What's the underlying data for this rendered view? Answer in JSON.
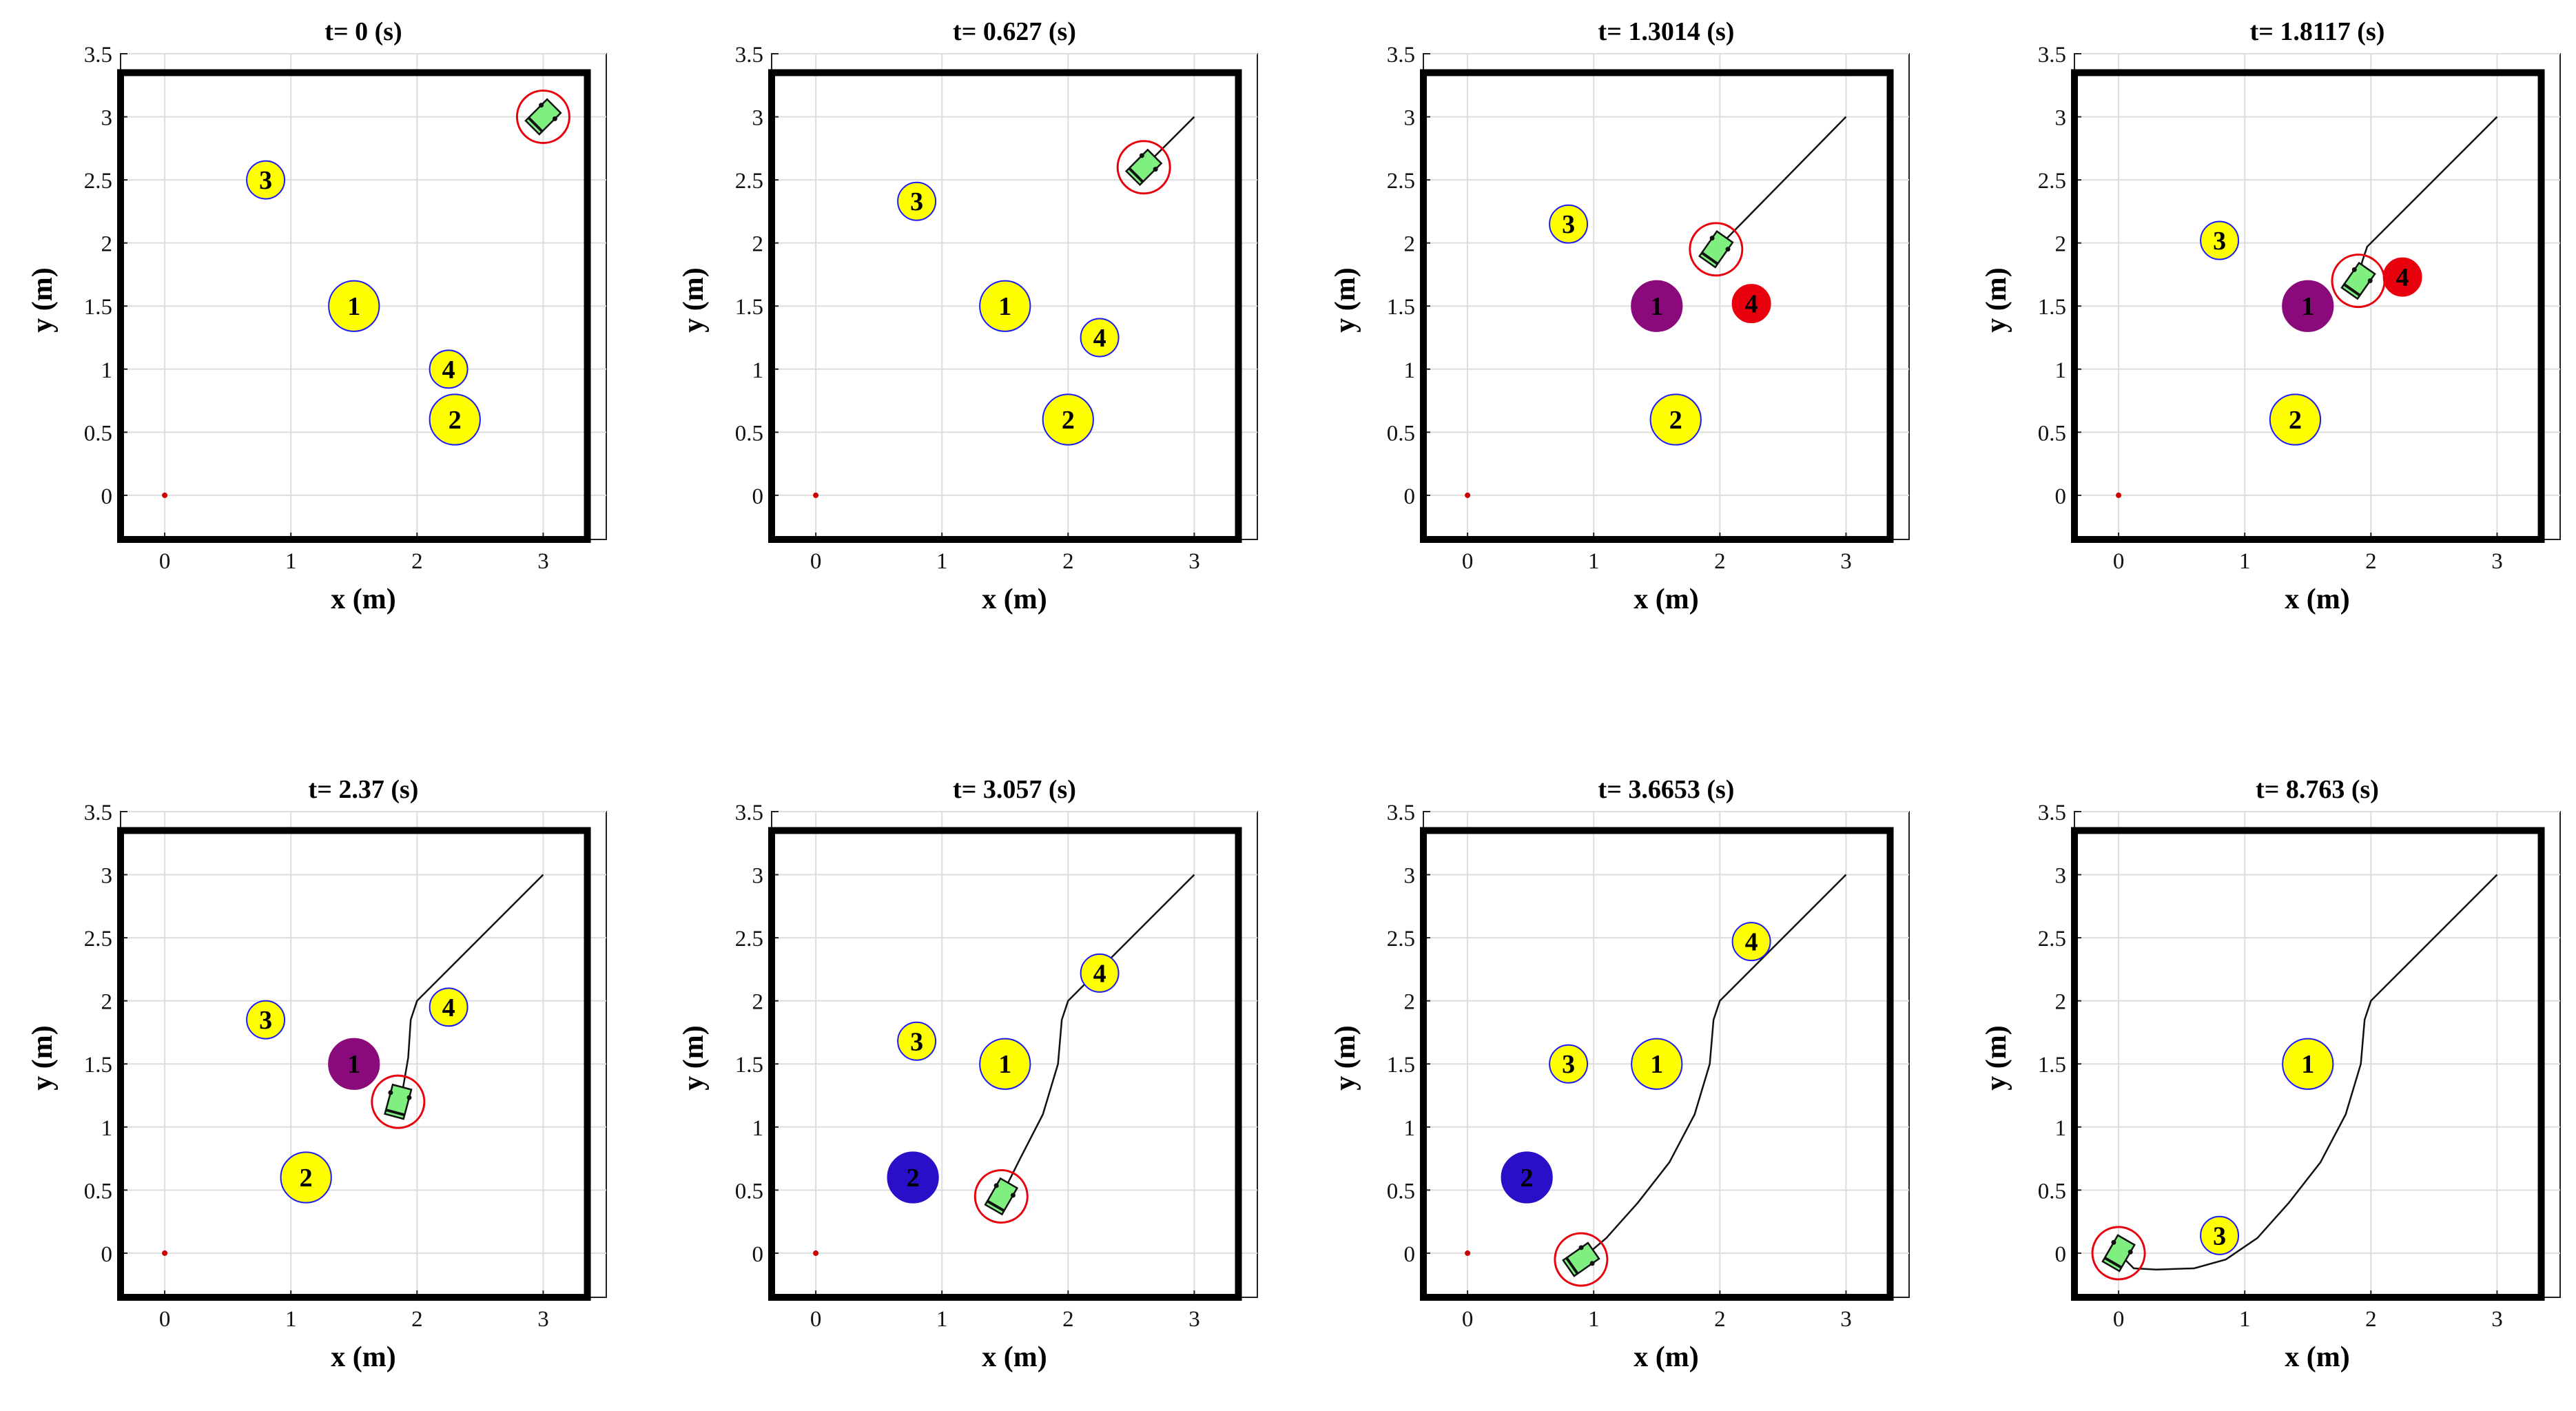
{
  "colors": {
    "obstacle_idle": "#ffff00",
    "obstacle_outline": "#1a1aff",
    "obstacle_active_1": "#8b0a7b",
    "obstacle_active_2": "#2a0fc8",
    "obstacle_alert": "#e8000d",
    "robot_body": "#7ff07f",
    "safety_ring": "#e8000d",
    "trajectory": "#111111",
    "goal_marker": "#cc0000",
    "grid": "#dddddd"
  },
  "chart_data": [
    {
      "type": "scatter",
      "title": "t= 0 (s)",
      "xlabel": "x (m)",
      "ylabel": "y (m)",
      "xlim": [
        -0.35,
        3.5
      ],
      "ylim": [
        -0.35,
        3.5
      ],
      "xticks": [
        "0",
        "1",
        "2",
        "3"
      ],
      "yticks": [
        "0",
        "0.5",
        "1",
        "1.5",
        "2",
        "2.5",
        "3",
        "3.5"
      ],
      "grid": true,
      "workspace": [
        -0.35,
        3.35,
        -0.35,
        3.35
      ],
      "goal": [
        0,
        0
      ],
      "robot": {
        "x": 3.0,
        "y": 3.0,
        "heading_deg": -135
      },
      "trajectory": [
        [
          3.0,
          3.0
        ]
      ],
      "obstacles": [
        {
          "id": "1",
          "x": 1.5,
          "y": 1.5,
          "r": 0.2,
          "state": "idle"
        },
        {
          "id": "2",
          "x": 2.3,
          "y": 0.6,
          "r": 0.2,
          "state": "idle"
        },
        {
          "id": "3",
          "x": 0.8,
          "y": 2.5,
          "r": 0.15,
          "state": "idle"
        },
        {
          "id": "4",
          "x": 2.25,
          "y": 1.0,
          "r": 0.15,
          "state": "idle"
        }
      ]
    },
    {
      "type": "scatter",
      "title": "t= 0.627 (s)",
      "xlabel": "x (m)",
      "ylabel": "y (m)",
      "xlim": [
        -0.35,
        3.5
      ],
      "ylim": [
        -0.35,
        3.5
      ],
      "xticks": [
        "0",
        "1",
        "2",
        "3"
      ],
      "yticks": [
        "0",
        "0.5",
        "1",
        "1.5",
        "2",
        "2.5",
        "3",
        "3.5"
      ],
      "grid": true,
      "workspace": [
        -0.35,
        3.35,
        -0.35,
        3.35
      ],
      "goal": [
        0,
        0
      ],
      "robot": {
        "x": 2.6,
        "y": 2.6,
        "heading_deg": -135
      },
      "trajectory": [
        [
          3.0,
          3.0
        ],
        [
          2.6,
          2.6
        ]
      ],
      "obstacles": [
        {
          "id": "1",
          "x": 1.5,
          "y": 1.5,
          "r": 0.2,
          "state": "idle"
        },
        {
          "id": "2",
          "x": 2.0,
          "y": 0.6,
          "r": 0.2,
          "state": "idle"
        },
        {
          "id": "3",
          "x": 0.8,
          "y": 2.33,
          "r": 0.15,
          "state": "idle"
        },
        {
          "id": "4",
          "x": 2.25,
          "y": 1.25,
          "r": 0.15,
          "state": "idle"
        }
      ]
    },
    {
      "type": "scatter",
      "title": "t= 1.3014 (s)",
      "xlabel": "x (m)",
      "ylabel": "y (m)",
      "xlim": [
        -0.35,
        3.5
      ],
      "ylim": [
        -0.35,
        3.5
      ],
      "xticks": [
        "0",
        "1",
        "2",
        "3"
      ],
      "yticks": [
        "0",
        "0.5",
        "1",
        "1.5",
        "2",
        "2.5",
        "3",
        "3.5"
      ],
      "grid": true,
      "workspace": [
        -0.35,
        3.35,
        -0.35,
        3.35
      ],
      "goal": [
        0,
        0
      ],
      "robot": {
        "x": 1.97,
        "y": 1.95,
        "heading_deg": -125
      },
      "trajectory": [
        [
          3.0,
          3.0
        ],
        [
          1.97,
          1.95
        ]
      ],
      "obstacles": [
        {
          "id": "1",
          "x": 1.5,
          "y": 1.5,
          "r": 0.2,
          "state": "active"
        },
        {
          "id": "2",
          "x": 1.65,
          "y": 0.6,
          "r": 0.2,
          "state": "idle"
        },
        {
          "id": "3",
          "x": 0.8,
          "y": 2.15,
          "r": 0.15,
          "state": "idle"
        },
        {
          "id": "4",
          "x": 2.25,
          "y": 1.52,
          "r": 0.15,
          "state": "alert"
        }
      ]
    },
    {
      "type": "scatter",
      "title": "t= 1.8117 (s)",
      "xlabel": "x (m)",
      "ylabel": "y (m)",
      "xlim": [
        -0.35,
        3.5
      ],
      "ylim": [
        -0.35,
        3.5
      ],
      "xticks": [
        "0",
        "1",
        "2",
        "3"
      ],
      "yticks": [
        "0",
        "0.5",
        "1",
        "1.5",
        "2",
        "2.5",
        "3",
        "3.5"
      ],
      "grid": true,
      "workspace": [
        -0.35,
        3.35,
        -0.35,
        3.35
      ],
      "goal": [
        0,
        0
      ],
      "robot": {
        "x": 1.9,
        "y": 1.7,
        "heading_deg": -125
      },
      "trajectory": [
        [
          3.0,
          3.0
        ],
        [
          1.97,
          1.97
        ],
        [
          1.93,
          1.85
        ],
        [
          1.9,
          1.7
        ]
      ],
      "obstacles": [
        {
          "id": "1",
          "x": 1.5,
          "y": 1.5,
          "r": 0.2,
          "state": "active"
        },
        {
          "id": "2",
          "x": 1.4,
          "y": 0.6,
          "r": 0.2,
          "state": "idle"
        },
        {
          "id": "3",
          "x": 0.8,
          "y": 2.02,
          "r": 0.15,
          "state": "idle"
        },
        {
          "id": "4",
          "x": 2.25,
          "y": 1.73,
          "r": 0.15,
          "state": "alert"
        }
      ]
    },
    {
      "type": "scatter",
      "title": "t= 2.37 (s)",
      "xlabel": "x (m)",
      "ylabel": "y (m)",
      "xlim": [
        -0.35,
        3.5
      ],
      "ylim": [
        -0.35,
        3.5
      ],
      "xticks": [
        "0",
        "1",
        "2",
        "3"
      ],
      "yticks": [
        "0",
        "0.5",
        "1",
        "1.5",
        "2",
        "2.5",
        "3",
        "3.5"
      ],
      "grid": true,
      "workspace": [
        -0.35,
        3.35,
        -0.35,
        3.35
      ],
      "goal": [
        0,
        0
      ],
      "robot": {
        "x": 1.85,
        "y": 1.2,
        "heading_deg": -105
      },
      "trajectory": [
        [
          3.0,
          3.0
        ],
        [
          2.0,
          2.0
        ],
        [
          1.95,
          1.85
        ],
        [
          1.93,
          1.55
        ],
        [
          1.87,
          1.2
        ]
      ],
      "obstacles": [
        {
          "id": "1",
          "x": 1.5,
          "y": 1.5,
          "r": 0.2,
          "state": "active"
        },
        {
          "id": "2",
          "x": 1.12,
          "y": 0.6,
          "r": 0.2,
          "state": "idle"
        },
        {
          "id": "3",
          "x": 0.8,
          "y": 1.85,
          "r": 0.15,
          "state": "idle"
        },
        {
          "id": "4",
          "x": 2.25,
          "y": 1.95,
          "r": 0.15,
          "state": "idle"
        }
      ]
    },
    {
      "type": "scatter",
      "title": "t= 3.057 (s)",
      "xlabel": "x (m)",
      "ylabel": "y (m)",
      "xlim": [
        -0.35,
        3.5
      ],
      "ylim": [
        -0.35,
        3.5
      ],
      "xticks": [
        "0",
        "1",
        "2",
        "3"
      ],
      "yticks": [
        "0",
        "0.5",
        "1",
        "1.5",
        "2",
        "2.5",
        "3",
        "3.5"
      ],
      "grid": true,
      "workspace": [
        -0.35,
        3.35,
        -0.35,
        3.35
      ],
      "goal": [
        0,
        0
      ],
      "robot": {
        "x": 1.47,
        "y": 0.45,
        "heading_deg": -120
      },
      "trajectory": [
        [
          3.0,
          3.0
        ],
        [
          2.0,
          2.0
        ],
        [
          1.95,
          1.85
        ],
        [
          1.92,
          1.5
        ],
        [
          1.8,
          1.1
        ],
        [
          1.62,
          0.75
        ],
        [
          1.47,
          0.45
        ]
      ],
      "obstacles": [
        {
          "id": "1",
          "x": 1.5,
          "y": 1.5,
          "r": 0.2,
          "state": "idle"
        },
        {
          "id": "2",
          "x": 0.77,
          "y": 0.6,
          "r": 0.2,
          "state": "active2"
        },
        {
          "id": "3",
          "x": 0.8,
          "y": 1.68,
          "r": 0.15,
          "state": "idle"
        },
        {
          "id": "4",
          "x": 2.25,
          "y": 2.22,
          "r": 0.15,
          "state": "idle"
        }
      ]
    },
    {
      "type": "scatter",
      "title": "t= 3.6653 (s)",
      "xlabel": "x (m)",
      "ylabel": "y (m)",
      "xlim": [
        -0.35,
        3.5
      ],
      "ylim": [
        -0.35,
        3.5
      ],
      "xticks": [
        "0",
        "1",
        "2",
        "3"
      ],
      "yticks": [
        "0",
        "0.5",
        "1",
        "1.5",
        "2",
        "2.5",
        "3",
        "3.5"
      ],
      "grid": true,
      "workspace": [
        -0.35,
        3.35,
        -0.35,
        3.35
      ],
      "goal": [
        0,
        0
      ],
      "robot": {
        "x": 0.9,
        "y": -0.05,
        "heading_deg": -145
      },
      "trajectory": [
        [
          3.0,
          3.0
        ],
        [
          2.0,
          2.0
        ],
        [
          1.95,
          1.85
        ],
        [
          1.92,
          1.5
        ],
        [
          1.8,
          1.1
        ],
        [
          1.6,
          0.72
        ],
        [
          1.35,
          0.4
        ],
        [
          1.1,
          0.12
        ],
        [
          0.9,
          -0.05
        ]
      ],
      "obstacles": [
        {
          "id": "1",
          "x": 1.5,
          "y": 1.5,
          "r": 0.2,
          "state": "idle"
        },
        {
          "id": "2",
          "x": 0.47,
          "y": 0.6,
          "r": 0.2,
          "state": "active2"
        },
        {
          "id": "3",
          "x": 0.8,
          "y": 1.5,
          "r": 0.15,
          "state": "idle"
        },
        {
          "id": "4",
          "x": 2.25,
          "y": 2.47,
          "r": 0.15,
          "state": "idle"
        }
      ]
    },
    {
      "type": "scatter",
      "title": "t= 8.763 (s)",
      "xlabel": "x (m)",
      "ylabel": "y (m)",
      "xlim": [
        -0.35,
        3.5
      ],
      "ylim": [
        -0.35,
        3.5
      ],
      "xticks": [
        "0",
        "1",
        "2",
        "3"
      ],
      "yticks": [
        "0",
        "0.5",
        "1",
        "1.5",
        "2",
        "2.5",
        "3",
        "3.5"
      ],
      "grid": true,
      "workspace": [
        -0.35,
        3.35,
        -0.35,
        3.35
      ],
      "goal": [
        0,
        0
      ],
      "robot": {
        "x": 0.0,
        "y": 0.0,
        "heading_deg": -120
      },
      "trajectory": [
        [
          3.0,
          3.0
        ],
        [
          2.0,
          2.0
        ],
        [
          1.95,
          1.85
        ],
        [
          1.92,
          1.5
        ],
        [
          1.8,
          1.1
        ],
        [
          1.6,
          0.72
        ],
        [
          1.35,
          0.4
        ],
        [
          1.1,
          0.12
        ],
        [
          0.85,
          -0.05
        ],
        [
          0.6,
          -0.12
        ],
        [
          0.3,
          -0.13
        ],
        [
          0.12,
          -0.12
        ],
        [
          0.0,
          0.0
        ]
      ],
      "obstacles": [
        {
          "id": "1",
          "x": 1.5,
          "y": 1.5,
          "r": 0.2,
          "state": "idle"
        },
        {
          "id": "3",
          "x": 0.8,
          "y": 0.14,
          "r": 0.15,
          "state": "idle"
        }
      ]
    }
  ]
}
